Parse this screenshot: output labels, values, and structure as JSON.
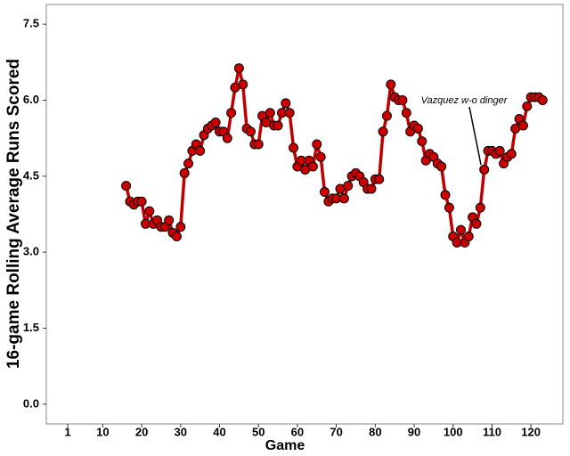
{
  "chart_data": {
    "type": "line",
    "xlabel": "Game",
    "ylabel": "16-game Rolling Average Runs Scored",
    "annotation": "Vazquez w-o dinger",
    "x": [
      16,
      17,
      18,
      19,
      20,
      21,
      22,
      23,
      24,
      25,
      26,
      27,
      28,
      29,
      30,
      31,
      32,
      33,
      34,
      35,
      36,
      37,
      38,
      39,
      40,
      41,
      42,
      43,
      44,
      45,
      46,
      47,
      48,
      49,
      50,
      51,
      52,
      53,
      54,
      55,
      56,
      57,
      58,
      59,
      60,
      61,
      62,
      63,
      64,
      65,
      66,
      67,
      68,
      69,
      70,
      71,
      72,
      73,
      74,
      75,
      76,
      77,
      78,
      79,
      80,
      81,
      82,
      83,
      84,
      85,
      86,
      87,
      88,
      89,
      90,
      91,
      92,
      93,
      94,
      95,
      96,
      97,
      98,
      99,
      100,
      101,
      102,
      103,
      104,
      105,
      106,
      107,
      108,
      109,
      110,
      111,
      112,
      113,
      114,
      115,
      116,
      117,
      118,
      119,
      120,
      121,
      122,
      123
    ],
    "series": [
      {
        "color": "#c00000",
        "marker_color": "#cc0000",
        "values": [
          4.31,
          4.0,
          3.94,
          4.0,
          4.0,
          3.56,
          3.81,
          3.56,
          3.63,
          3.5,
          3.5,
          3.63,
          3.38,
          3.31,
          3.5,
          4.56,
          4.75,
          5.0,
          5.13,
          5.0,
          5.31,
          5.44,
          5.5,
          5.56,
          5.38,
          5.38,
          5.25,
          5.75,
          6.25,
          6.63,
          6.31,
          5.44,
          5.38,
          5.13,
          5.13,
          5.69,
          5.56,
          5.75,
          5.5,
          5.5,
          5.75,
          5.94,
          5.75,
          5.06,
          4.69,
          4.81,
          4.63,
          4.81,
          4.69,
          5.13,
          4.88,
          4.19,
          4.0,
          4.06,
          4.06,
          4.25,
          4.06,
          4.31,
          4.5,
          4.56,
          4.5,
          4.38,
          4.25,
          4.25,
          4.44,
          4.44,
          5.38,
          5.69,
          6.31,
          6.06,
          6.0,
          6.0,
          5.75,
          5.38,
          5.5,
          5.44,
          5.19,
          4.81,
          4.94,
          4.88,
          4.75,
          4.69,
          4.13,
          3.88,
          3.31,
          3.19,
          3.44,
          3.19,
          3.31,
          3.69,
          3.56,
          3.88,
          4.63,
          5.0,
          5.0,
          4.94,
          5.0,
          4.75,
          4.88,
          4.94,
          5.44,
          5.63,
          5.5,
          5.88,
          6.06,
          6.06,
          6.06,
          6.0
        ]
      }
    ],
    "xlim": [
      -4.5,
      128.2
    ],
    "ylim": [
      -0.39,
      7.89
    ],
    "xticks": [
      1,
      10,
      20,
      30,
      40,
      50,
      60,
      70,
      80,
      90,
      100,
      110,
      120
    ],
    "yticks": [
      {
        "value": 0,
        "label": "0.0"
      },
      1.5,
      {
        "value": 3,
        "label": "3.0"
      },
      4.5,
      {
        "value": 6,
        "label": "6.0"
      },
      7.5
    ],
    "grid": false
  }
}
